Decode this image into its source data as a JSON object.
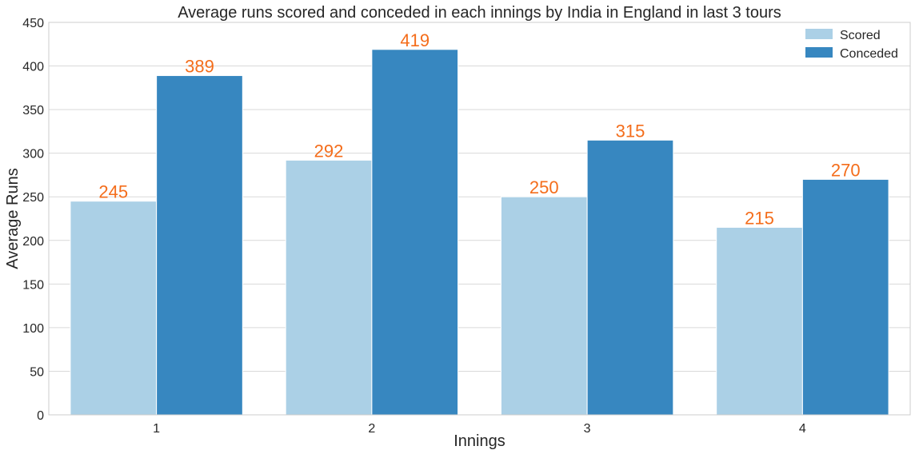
{
  "chart_data": {
    "type": "bar",
    "title": "Average runs scored and conceded in each innings by India in England in last 3 tours",
    "xlabel": "Innings",
    "ylabel": "Average Runs",
    "categories": [
      "1",
      "2",
      "3",
      "4"
    ],
    "series": [
      {
        "name": "Scored",
        "values": [
          245,
          292,
          250,
          215
        ],
        "color": "#abd0e6"
      },
      {
        "name": "Conceded",
        "values": [
          389,
          419,
          315,
          270
        ],
        "color": "#3787c0"
      }
    ],
    "ylim": [
      0,
      450
    ],
    "yticks": [
      0,
      50,
      100,
      150,
      200,
      250,
      300,
      350,
      400,
      450
    ],
    "grid": true,
    "legend_position": "top-right",
    "data_label_color": "#f46d1b"
  }
}
